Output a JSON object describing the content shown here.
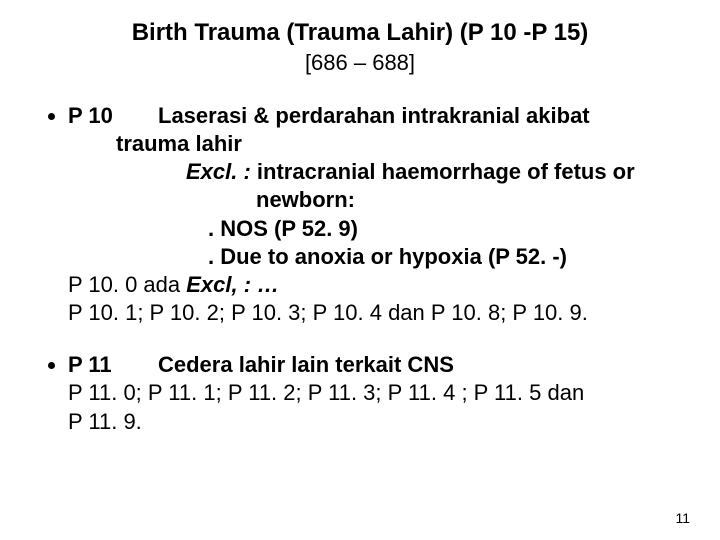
{
  "title": "Birth Trauma (Trauma Lahir) (P 10 -P 15)",
  "subtitle": "[686 – 688]",
  "sections": [
    {
      "code": "P 10",
      "heading": "Laserasi & perdarahan intrakranial akibat",
      "heading_cont": "trauma lahir",
      "excl_label": "Excl. :",
      "excl_text": " intracranial haemorrhage of fetus or",
      "excl_cont": "newborn:",
      "dot1": ".   NOS (P 52. 9)",
      "dot2": ".   Due to anoxia or hypoxia (P 52. -)",
      "line_a_pre": "P 10. 0    ada ",
      "line_a_italic": "Excl, :  …",
      "line_b": "P 10. 1;  P 10. 2;  P 10. 3;  P 10. 4  dan  P 10. 8;  P 10. 9."
    },
    {
      "code": "P 11",
      "heading": "Cedera lahir lain terkait  CNS",
      "line_a": "P 11. 0;  P 11. 1; P 11. 2;  P 11. 3;  P 11. 4 ; P 11. 5  dan",
      "line_b": "P 11. 9."
    }
  ],
  "page_number": "11",
  "colors": {
    "background": "#ffffff",
    "text": "#000000"
  },
  "typography": {
    "title_fontsize": 24,
    "body_fontsize": 22,
    "pagenum_fontsize": 14,
    "font_family": "Arial"
  }
}
